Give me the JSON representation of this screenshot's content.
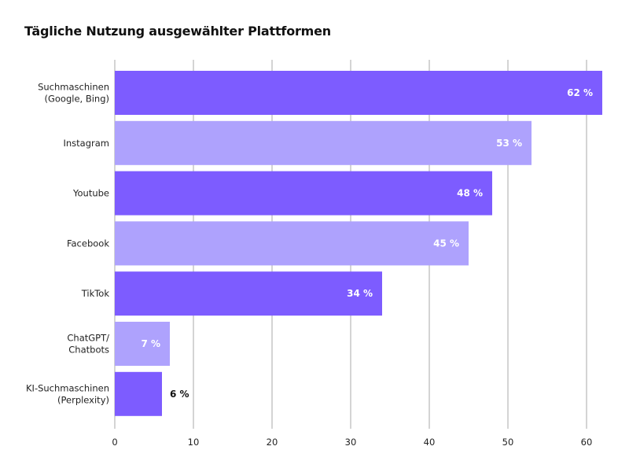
{
  "chart_data": {
    "type": "bar",
    "orientation": "horizontal",
    "title": "Tägliche Nutzung ausgewählter Plattformen",
    "xlabel": "",
    "ylabel": "",
    "xlim": [
      0,
      62
    ],
    "xticks": [
      0,
      10,
      20,
      30,
      40,
      50,
      60
    ],
    "grid": true,
    "categories": [
      [
        "Suchmaschinen",
        "(Google, Bing)"
      ],
      [
        "Instagram"
      ],
      [
        "Youtube"
      ],
      [
        "Facebook"
      ],
      [
        "TikTok"
      ],
      [
        "ChatGPT/",
        "Chatbots"
      ],
      [
        "KI-Suchmaschinen",
        "(Perplexity)"
      ]
    ],
    "values": [
      62,
      53,
      48,
      45,
      34,
      7,
      6
    ],
    "value_labels": [
      "62 %",
      "53 %",
      "48 %",
      "45 %",
      "34 %",
      "7 %",
      "6 %"
    ],
    "bar_colors": [
      "#7d5cff",
      "#aea2fd",
      "#7d5cff",
      "#aea2fd",
      "#7d5cff",
      "#aea2fd",
      "#7d5cff"
    ],
    "colors": {
      "dark": "#7d5cff",
      "light": "#aea2fd",
      "grid": "#d4d4d4",
      "label_inside": "#ffffff",
      "label_outside": "#111111"
    }
  }
}
